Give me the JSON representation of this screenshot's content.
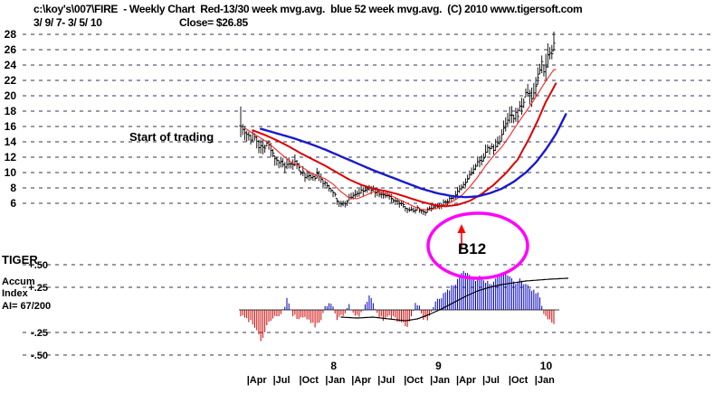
{
  "header": {
    "line1": "c:\\koy's\\007\\FIRE  - Weekly Chart  Red-13/30 week mvg.avg.  blue 52 week mvg.avg.  (C) 2010 www.tigersoft.com",
    "date_range": "3/ 9/ 7- 3/ 5/ 10",
    "close_label": "Close= $26.85"
  },
  "tiger_panel": {
    "title": "TIGER",
    "line1": "Accum",
    "line2": "Index",
    "ai_value": "AI= 67/200"
  },
  "annotations": {
    "start_of_trading": "Start of trading",
    "b12": "B12"
  },
  "chart_data": {
    "type": "line",
    "subtype": "weekly-ohlc-stock-chart-with-accumulation-index",
    "symbol": "FIRE",
    "period": "Weekly",
    "date_range": "3/9/07 - 3/5/10",
    "last_close": 26.85,
    "legend": {
      "red": "13/30 week mvg.avg.",
      "blue": "52 week mvg.avg."
    },
    "price_axis": {
      "ticks": [
        28,
        26,
        24,
        22,
        20,
        18,
        16,
        14,
        12,
        10,
        8,
        6
      ],
      "min": 4,
      "max": 29
    },
    "ai_axis": {
      "ticks": [
        "+.50",
        "+.25",
        "-.25",
        "-.50"
      ],
      "values": [
        0.5,
        0.25,
        -0.25,
        -0.5
      ]
    },
    "x_axis": {
      "months": [
        "|Apr",
        "|Jul",
        "|Oct",
        "|Jan",
        "|Apr",
        "|Jul",
        "|Oct",
        "|Jan",
        "|Apr",
        "|Jul",
        "|Oct",
        "|Jan"
      ],
      "years": [
        {
          "label": "8",
          "month_index": 3
        },
        {
          "label": "9",
          "month_index": 7
        },
        {
          "label": "10",
          "month_index": 11
        }
      ]
    },
    "weeks_total": 156,
    "price_close_keyframes": [
      [
        0,
        16.3
      ],
      [
        1,
        15.6
      ],
      [
        3,
        15.2
      ],
      [
        5,
        14.4
      ],
      [
        7,
        14.9
      ],
      [
        9,
        13.6
      ],
      [
        11,
        13.2
      ],
      [
        13,
        13.9
      ],
      [
        16,
        12.4
      ],
      [
        19,
        11.4
      ],
      [
        22,
        10.7
      ],
      [
        25,
        10.9
      ],
      [
        27,
        11.3
      ],
      [
        30,
        10.1
      ],
      [
        33,
        9.4
      ],
      [
        36,
        9.2
      ],
      [
        38,
        9.7
      ],
      [
        41,
        8.7
      ],
      [
        44,
        8.1
      ],
      [
        46,
        7.6
      ],
      [
        48,
        6.3
      ],
      [
        50,
        5.8
      ],
      [
        52,
        6.0
      ],
      [
        54,
        6.6
      ],
      [
        56,
        7.1
      ],
      [
        59,
        7.4
      ],
      [
        62,
        7.7
      ],
      [
        65,
        7.9
      ],
      [
        68,
        7.4
      ],
      [
        71,
        7.0
      ],
      [
        74,
        6.8
      ],
      [
        77,
        6.3
      ],
      [
        80,
        5.9
      ],
      [
        83,
        5.3
      ],
      [
        86,
        5.0
      ],
      [
        88,
        5.4
      ],
      [
        90,
        5.0
      ],
      [
        92,
        4.9
      ],
      [
        94,
        5.3
      ],
      [
        96,
        5.6
      ],
      [
        98,
        5.7
      ],
      [
        100,
        5.9
      ],
      [
        102,
        6.1
      ],
      [
        104,
        6.5
      ],
      [
        106,
        6.9
      ],
      [
        108,
        7.4
      ],
      [
        110,
        8.0
      ],
      [
        112,
        8.7
      ],
      [
        114,
        9.6
      ],
      [
        116,
        10.4
      ],
      [
        118,
        11.1
      ],
      [
        120,
        11.8
      ],
      [
        122,
        12.4
      ],
      [
        124,
        13.4
      ],
      [
        126,
        12.9
      ],
      [
        128,
        13.8
      ],
      [
        130,
        14.9
      ],
      [
        132,
        16.1
      ],
      [
        134,
        17.3
      ],
      [
        136,
        16.9
      ],
      [
        138,
        17.8
      ],
      [
        140,
        18.8
      ],
      [
        142,
        19.9
      ],
      [
        143,
        20.6
      ],
      [
        145,
        19.6
      ],
      [
        147,
        21.4
      ],
      [
        149,
        23.2
      ],
      [
        150,
        24.6
      ],
      [
        151,
        23.6
      ],
      [
        152,
        24.0
      ],
      [
        153,
        25.2
      ],
      [
        154,
        26.3
      ],
      [
        155,
        25.6
      ],
      [
        156,
        26.85
      ]
    ],
    "ma13_keyframes": [
      [
        2,
        15.8
      ],
      [
        6,
        15.1
      ],
      [
        10,
        14.5
      ],
      [
        14,
        13.8
      ],
      [
        18,
        12.9
      ],
      [
        22,
        12.0
      ],
      [
        26,
        11.2
      ],
      [
        30,
        10.8
      ],
      [
        34,
        10.1
      ],
      [
        38,
        9.6
      ],
      [
        42,
        9.2
      ],
      [
        46,
        8.5
      ],
      [
        50,
        7.5
      ],
      [
        54,
        6.7
      ],
      [
        58,
        6.6
      ],
      [
        62,
        7.0
      ],
      [
        66,
        7.5
      ],
      [
        70,
        7.4
      ],
      [
        74,
        7.1
      ],
      [
        78,
        6.6
      ],
      [
        82,
        6.1
      ],
      [
        86,
        5.6
      ],
      [
        90,
        5.2
      ],
      [
        94,
        5.1
      ],
      [
        98,
        5.4
      ],
      [
        102,
        5.8
      ],
      [
        106,
        6.3
      ],
      [
        110,
        7.0
      ],
      [
        114,
        8.1
      ],
      [
        118,
        9.4
      ],
      [
        122,
        10.9
      ],
      [
        126,
        12.2
      ],
      [
        130,
        13.3
      ],
      [
        134,
        14.8
      ],
      [
        138,
        16.4
      ],
      [
        142,
        17.9
      ],
      [
        146,
        19.4
      ],
      [
        150,
        21.1
      ],
      [
        153,
        22.3
      ],
      [
        156,
        23.4
      ]
    ],
    "ma30_keyframes": [
      [
        6,
        15.5
      ],
      [
        12,
        14.9
      ],
      [
        18,
        14.2
      ],
      [
        24,
        13.4
      ],
      [
        30,
        12.5
      ],
      [
        36,
        11.7
      ],
      [
        42,
        10.9
      ],
      [
        48,
        10.0
      ],
      [
        54,
        9.1
      ],
      [
        60,
        8.4
      ],
      [
        66,
        7.9
      ],
      [
        72,
        7.6
      ],
      [
        78,
        7.2
      ],
      [
        84,
        6.7
      ],
      [
        90,
        6.2
      ],
      [
        96,
        5.8
      ],
      [
        102,
        5.6
      ],
      [
        108,
        5.8
      ],
      [
        114,
        6.3
      ],
      [
        120,
        7.2
      ],
      [
        126,
        8.4
      ],
      [
        132,
        9.9
      ],
      [
        138,
        11.7
      ],
      [
        144,
        14.6
      ],
      [
        148,
        16.8
      ],
      [
        152,
        19.2
      ],
      [
        157,
        21.6
      ]
    ],
    "ma52_keyframes": [
      [
        10,
        15.7
      ],
      [
        18,
        15.1
      ],
      [
        26,
        14.5
      ],
      [
        34,
        13.8
      ],
      [
        42,
        13.0
      ],
      [
        50,
        12.1
      ],
      [
        58,
        11.2
      ],
      [
        66,
        10.3
      ],
      [
        74,
        9.5
      ],
      [
        82,
        8.7
      ],
      [
        90,
        7.9
      ],
      [
        98,
        7.3
      ],
      [
        106,
        6.9
      ],
      [
        112,
        6.8
      ],
      [
        118,
        6.9
      ],
      [
        124,
        7.3
      ],
      [
        130,
        7.9
      ],
      [
        136,
        8.8
      ],
      [
        142,
        10.0
      ],
      [
        147,
        11.3
      ],
      [
        152,
        13.0
      ],
      [
        157,
        15.0
      ],
      [
        162,
        17.6
      ]
    ],
    "ai_keyframes": [
      [
        0,
        -0.06
      ],
      [
        3,
        -0.1
      ],
      [
        6,
        -0.14
      ],
      [
        8,
        -0.22
      ],
      [
        10,
        -0.34
      ],
      [
        12,
        -0.24
      ],
      [
        14,
        -0.12
      ],
      [
        17,
        -0.08
      ],
      [
        20,
        -0.05
      ],
      [
        22,
        0.04
      ],
      [
        23,
        0.12
      ],
      [
        24,
        0.05
      ],
      [
        26,
        -0.06
      ],
      [
        29,
        -0.1
      ],
      [
        32,
        -0.07
      ],
      [
        35,
        -0.14
      ],
      [
        37,
        -0.18
      ],
      [
        40,
        -0.12
      ],
      [
        42,
        0.03
      ],
      [
        44,
        0.07
      ],
      [
        46,
        0.04
      ],
      [
        48,
        -0.09
      ],
      [
        51,
        -0.07
      ],
      [
        54,
        0.05
      ],
      [
        56,
        -0.04
      ],
      [
        59,
        -0.08
      ],
      [
        62,
        0.05
      ],
      [
        64,
        0.17
      ],
      [
        66,
        0.08
      ],
      [
        68,
        -0.05
      ],
      [
        71,
        -0.1
      ],
      [
        74,
        -0.07
      ],
      [
        77,
        -0.1
      ],
      [
        80,
        -0.15
      ],
      [
        83,
        -0.17
      ],
      [
        85,
        -0.08
      ],
      [
        87,
        0.06
      ],
      [
        89,
        0.05
      ],
      [
        91,
        -0.09
      ],
      [
        93,
        -0.11
      ],
      [
        95,
        -0.04
      ],
      [
        97,
        0.08
      ],
      [
        99,
        0.13
      ],
      [
        101,
        0.17
      ],
      [
        103,
        0.21
      ],
      [
        105,
        0.25
      ],
      [
        107,
        0.3
      ],
      [
        109,
        0.38
      ],
      [
        111,
        0.44
      ],
      [
        113,
        0.41
      ],
      [
        115,
        0.35
      ],
      [
        117,
        0.32
      ],
      [
        119,
        0.37
      ],
      [
        121,
        0.34
      ],
      [
        123,
        0.3
      ],
      [
        125,
        0.28
      ],
      [
        127,
        0.33
      ],
      [
        129,
        0.38
      ],
      [
        131,
        0.42
      ],
      [
        133,
        0.37
      ],
      [
        135,
        0.33
      ],
      [
        137,
        0.3
      ],
      [
        139,
        0.33
      ],
      [
        141,
        0.3
      ],
      [
        143,
        0.26
      ],
      [
        145,
        0.23
      ],
      [
        147,
        0.2
      ],
      [
        149,
        0.14
      ],
      [
        150,
        0.05
      ],
      [
        151,
        -0.06
      ],
      [
        153,
        -0.12
      ],
      [
        156,
        -0.14
      ]
    ],
    "ai_ma_keyframes": [
      [
        50,
        -0.08
      ],
      [
        58,
        -0.09
      ],
      [
        66,
        -0.08
      ],
      [
        74,
        -0.1
      ],
      [
        82,
        -0.12
      ],
      [
        88,
        -0.1
      ],
      [
        94,
        -0.05
      ],
      [
        100,
        0.01
      ],
      [
        106,
        0.08
      ],
      [
        112,
        0.15
      ],
      [
        118,
        0.21
      ],
      [
        124,
        0.25
      ],
      [
        130,
        0.28
      ],
      [
        136,
        0.3
      ],
      [
        142,
        0.32
      ],
      [
        148,
        0.33
      ],
      [
        154,
        0.34
      ],
      [
        163,
        0.35
      ]
    ],
    "colors": {
      "bar": "#000000",
      "ma13": "#ff2222",
      "ma30": "#dd0000",
      "ma52": "#1a1acc",
      "ai_pos": "#0000bb",
      "ai_neg": "#cc0000",
      "grid": "#333355",
      "ellipse": "#ff00ff",
      "arrow": "#ff0000",
      "text": "#000000"
    }
  }
}
